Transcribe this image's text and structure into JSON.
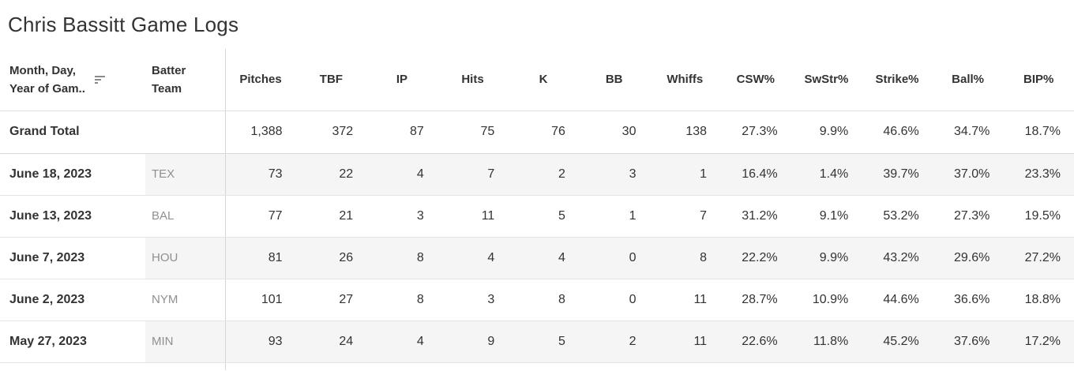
{
  "title": "Chris Bassitt Game Logs",
  "chart_data": {
    "type": "table",
    "title": "Chris Bassitt Game Logs",
    "date_header": {
      "line1": "Month, Day,",
      "line2": "Year of Gam..",
      "sort_state": "descending"
    },
    "team_header": {
      "line1": "Batter",
      "line2": "Team"
    },
    "columns": [
      "Pitches",
      "TBF",
      "IP",
      "Hits",
      "K",
      "BB",
      "Whiffs",
      "CSW%",
      "SwStr%",
      "Strike%",
      "Ball%",
      "BIP%"
    ],
    "grand_total": {
      "label": "Grand Total",
      "values": [
        "1,388",
        "372",
        "87",
        "75",
        "76",
        "30",
        "138",
        "27.3%",
        "9.9%",
        "46.6%",
        "34.7%",
        "18.7%"
      ]
    },
    "rows": [
      {
        "date": "June 18, 2023",
        "team": "TEX",
        "banded": true,
        "values": [
          "73",
          "22",
          "4",
          "7",
          "2",
          "3",
          "1",
          "16.4%",
          "1.4%",
          "39.7%",
          "37.0%",
          "23.3%"
        ]
      },
      {
        "date": "June 13, 2023",
        "team": "BAL",
        "banded": false,
        "values": [
          "77",
          "21",
          "3",
          "11",
          "5",
          "1",
          "7",
          "31.2%",
          "9.1%",
          "53.2%",
          "27.3%",
          "19.5%"
        ]
      },
      {
        "date": "June 7, 2023",
        "team": "HOU",
        "banded": true,
        "values": [
          "81",
          "26",
          "8",
          "4",
          "4",
          "0",
          "8",
          "22.2%",
          "9.9%",
          "43.2%",
          "29.6%",
          "27.2%"
        ]
      },
      {
        "date": "June 2, 2023",
        "team": "NYM",
        "banded": false,
        "values": [
          "101",
          "27",
          "8",
          "3",
          "8",
          "0",
          "11",
          "28.7%",
          "10.9%",
          "44.6%",
          "36.6%",
          "18.8%"
        ]
      },
      {
        "date": "May 27, 2023",
        "team": "MIN",
        "banded": true,
        "values": [
          "93",
          "24",
          "4",
          "9",
          "5",
          "2",
          "11",
          "22.6%",
          "11.8%",
          "45.2%",
          "37.6%",
          "17.2%"
        ]
      }
    ]
  },
  "colors": {
    "text": "#333333",
    "team_text": "#8f8f8f",
    "band": "#f5f5f5",
    "row_line": "#e4e4e4",
    "header_line": "#dedede",
    "grand_total_line": "#d9d9d9",
    "v_line": "#d6d6d6",
    "icon": "#8a8a8a"
  }
}
